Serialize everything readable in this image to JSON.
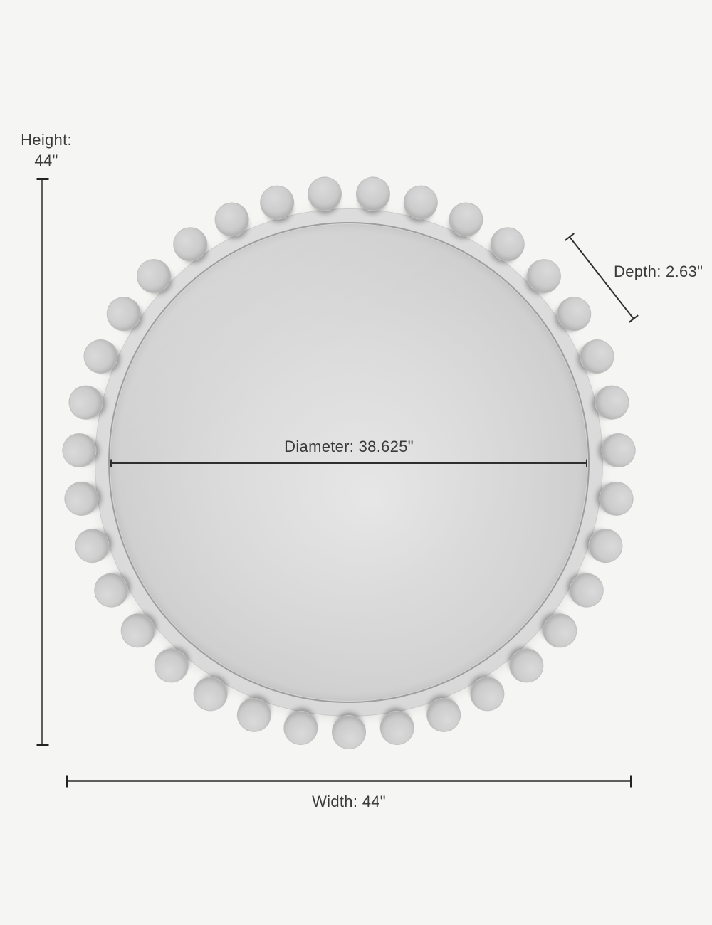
{
  "page": {
    "background": "#f5f5f3"
  },
  "mirror": {
    "type": "round beaded-frame wall mirror",
    "bead_count": 35
  },
  "dimensions": {
    "height": {
      "name": "Height:",
      "value": "44\""
    },
    "width": {
      "name": "Width:",
      "value": "44\""
    },
    "diameter": {
      "name": "Diameter:",
      "value": "38.625\""
    },
    "depth": {
      "name": "Depth:",
      "value": "2.63\""
    }
  },
  "colors": {
    "background": "#f5f5f3",
    "label_text": "#3a3a3a",
    "line_shaft": "#5e5e5e",
    "line_cap": "#222222",
    "thin_line": "#2e2e2e",
    "bead": "#c9c9c9",
    "frame": "#dcdcdc",
    "glass_center": "#ebebeb",
    "glass_edge": "#c2c2c2"
  }
}
